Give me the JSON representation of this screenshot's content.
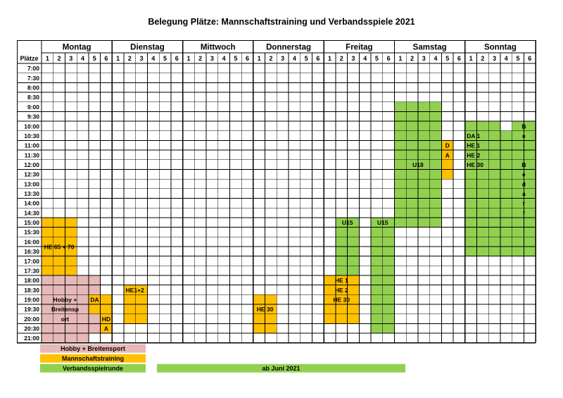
{
  "title": "Belegung Plätze: Mannschaftstraining und Verbandsspiele 2021",
  "colors": {
    "training": "#FFC000",
    "spiel": "#92D050",
    "hobby": "#E6B8B7"
  },
  "header": {
    "plaetze_label": "Plätze",
    "days": [
      "Montag",
      "Dienstag",
      "Mittwoch",
      "Donnerstag",
      "Freitag",
      "Samstag",
      "Sonntag"
    ],
    "courts": [
      "1",
      "2",
      "3",
      "4",
      "5",
      "6"
    ]
  },
  "times": [
    "7:00",
    "7:30",
    "8:00",
    "8:30",
    "9:00",
    "9:30",
    "10:00",
    "10:30",
    "11:00",
    "11:30",
    "12:00",
    "12:30",
    "13:00",
    "13:30",
    "14:00",
    "14:30",
    "15:00",
    "15:30",
    "16:00",
    "16:30",
    "17:00",
    "17:30",
    "18:00",
    "18:30",
    "19:00",
    "19:30",
    "20:00",
    "20:30",
    "21:00"
  ],
  "blocks": [
    {
      "name": "mo-he65-block",
      "day": 0,
      "c1": 0,
      "c2": 2,
      "r1": 16,
      "r2": 21,
      "type": "training",
      "label": [
        "HE 65 + 70"
      ],
      "labelRow": 18.5,
      "labelAlign": "center"
    },
    {
      "name": "mo-hobby-block",
      "day": 0,
      "c1": 0,
      "c2": 3,
      "r1": 22,
      "r2": 28,
      "type": "hobby",
      "label": [
        "Hobby +",
        "Breitensp",
        "ort"
      ],
      "labelRow": 24,
      "labelAlign": "center"
    },
    {
      "name": "mo-hobby-block-2",
      "day": 0,
      "c1": 4,
      "c2": 4,
      "r1": 22,
      "r2": 27,
      "type": "hobby",
      "label": [],
      "labelRow": 0,
      "labelAlign": "center"
    },
    {
      "name": "mo-da-block",
      "day": 0,
      "c1": 4,
      "c2": 5,
      "r1": 24,
      "r2": 25,
      "type": "training",
      "label": [
        "DA"
      ],
      "labelRow": 24,
      "labelAlign": "left"
    },
    {
      "name": "mo-hda-block",
      "day": 0,
      "c1": 5,
      "c2": 5,
      "r1": 26,
      "r2": 27,
      "type": "training",
      "label": [
        "HD",
        "A"
      ],
      "labelRow": 26,
      "labelAlign": "center"
    },
    {
      "name": "di-he12-block",
      "day": 1,
      "c1": 1,
      "c2": 2,
      "r1": 23,
      "r2": 26,
      "type": "training",
      "label": [
        "HE1+2"
      ],
      "labelRow": 23,
      "labelAlign": "left"
    },
    {
      "name": "do-he30-block",
      "day": 3,
      "c1": 0,
      "c2": 1,
      "r1": 24,
      "r2": 27,
      "type": "training",
      "label": [
        "HE 30"
      ],
      "labelRow": 25,
      "labelAlign": "center"
    },
    {
      "name": "fr-he-block",
      "day": 4,
      "c1": 0,
      "c2": 2,
      "r1": 22,
      "r2": 26,
      "type": "training",
      "label": [
        "HE 1",
        "HE 2",
        "HE 30"
      ],
      "labelRow": 22,
      "labelAlign": "center"
    },
    {
      "name": "fr-u15-block-a",
      "day": 4,
      "c1": 1,
      "c2": 2,
      "r1": 16,
      "r2": 21,
      "type": "spiel",
      "label": [
        "U15"
      ],
      "labelRow": 16,
      "labelAlign": "center"
    },
    {
      "name": "fr-u15-block-b",
      "day": 4,
      "c1": 4,
      "c2": 5,
      "r1": 16,
      "r2": 27,
      "type": "spiel",
      "label": [
        "U15"
      ],
      "labelRow": 16,
      "labelAlign": "center"
    },
    {
      "name": "sa-u18-block",
      "day": 5,
      "c1": 0,
      "c2": 3,
      "r1": 4,
      "r2": 16,
      "type": "spiel",
      "label": [
        "U18"
      ],
      "labelRow": 10,
      "labelAlign": "center"
    },
    {
      "name": "sa-da-block",
      "day": 5,
      "c1": 4,
      "c2": 4,
      "r1": 8,
      "r2": 11,
      "type": "training",
      "label": [
        "D",
        "A"
      ],
      "labelRow": 8,
      "labelAlign": "center"
    },
    {
      "name": "so-da-block-top",
      "day": 6,
      "c1": 0,
      "c2": 2,
      "r1": 6,
      "r2": 6,
      "type": "spiel",
      "label": [],
      "labelRow": 0,
      "labelAlign": "center"
    },
    {
      "name": "so-da-block",
      "day": 6,
      "c1": 0,
      "c2": 3,
      "r1": 7,
      "r2": 19,
      "type": "spiel",
      "label": [
        "DA 1",
        "HE 1",
        "HE 2",
        "HE 30"
      ],
      "labelRow": 7,
      "labelAlign": "left"
    },
    {
      "name": "so-beibedarf-block",
      "day": 6,
      "c1": 4,
      "c2": 5,
      "r1": 6,
      "r2": 19,
      "type": "spiel",
      "label": [
        "B",
        "e",
        "i",
        "",
        "B",
        "e",
        "d",
        "a",
        "r",
        "f"
      ],
      "labelRow": 6,
      "labelAlign": "center"
    }
  ],
  "legend": {
    "hobby": "Hobby + Breitensport",
    "training": "Mannschaftstraining",
    "spiel": "Verbandsspielrunde",
    "ab_juni": "ab Juni 2021"
  }
}
